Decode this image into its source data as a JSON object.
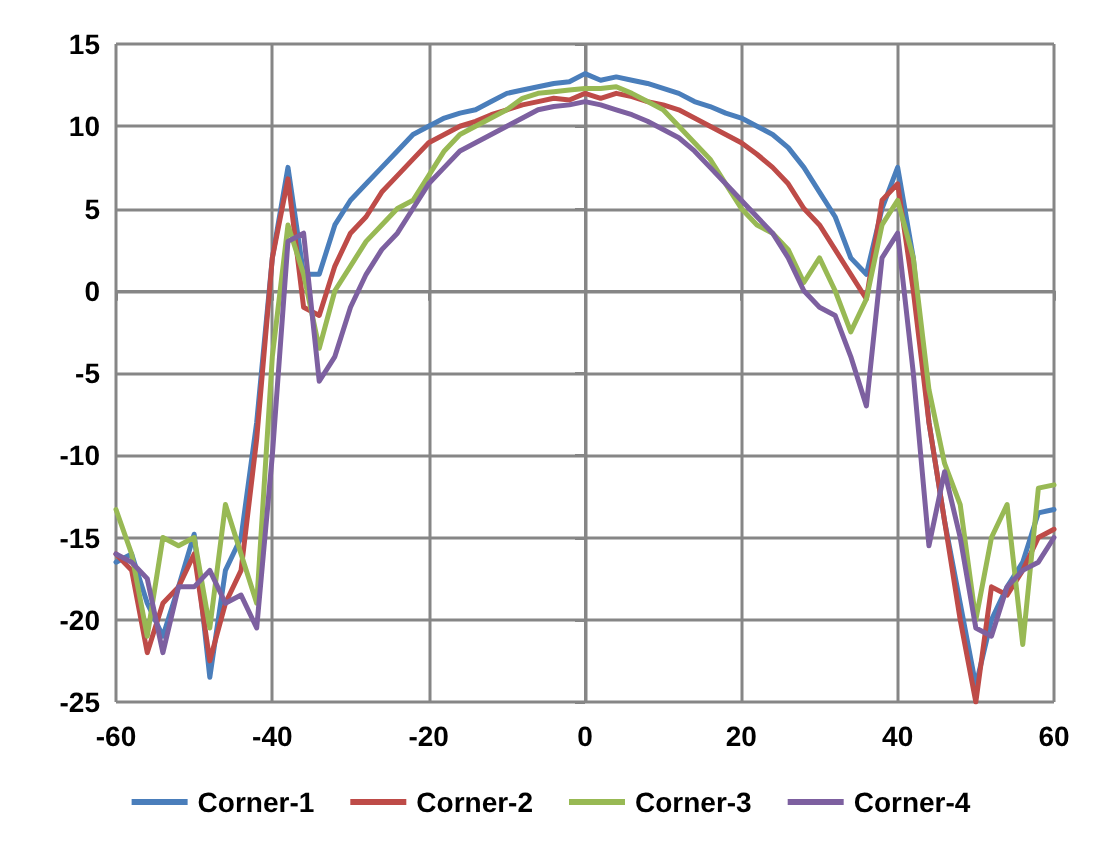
{
  "chart_data": {
    "type": "line",
    "x": [
      -60,
      -58,
      -56,
      -54,
      -52,
      -50,
      -48,
      -46,
      -44,
      -42,
      -40,
      -38,
      -36,
      -34,
      -32,
      -30,
      -28,
      -26,
      -24,
      -22,
      -20,
      -18,
      -16,
      -14,
      -12,
      -10,
      -8,
      -6,
      -4,
      -2,
      0,
      2,
      4,
      6,
      8,
      10,
      12,
      14,
      16,
      18,
      20,
      22,
      24,
      26,
      28,
      30,
      32,
      34,
      36,
      38,
      40,
      42,
      44,
      46,
      48,
      50,
      52,
      54,
      56,
      58,
      60
    ],
    "series": [
      {
        "name": "Corner-1",
        "color": "#4a7ebb",
        "values": [
          -16.5,
          -16,
          -19,
          -21,
          -18,
          -14.8,
          -23.5,
          -17,
          -15,
          -8,
          2,
          7.5,
          1,
          1,
          4,
          5.5,
          6.5,
          7.5,
          8.5,
          9.5,
          10,
          10.5,
          10.8,
          11,
          11.5,
          12,
          12.2,
          12.4,
          12.6,
          12.7,
          13.2,
          12.8,
          13,
          12.8,
          12.6,
          12.3,
          12,
          11.5,
          11.2,
          10.8,
          10.5,
          10,
          9.5,
          8.7,
          7.5,
          6,
          4.5,
          2,
          1,
          5,
          7.5,
          2,
          -8,
          -14,
          -19,
          -24,
          -20,
          -18,
          -16.5,
          -13.5,
          -13.3
        ]
      },
      {
        "name": "Corner-2",
        "color": "#be4b48",
        "values": [
          -16,
          -17,
          -22,
          -19,
          -18,
          -16,
          -22.5,
          -19,
          -17,
          -9,
          2,
          6.8,
          -1,
          -1.5,
          1.5,
          3.5,
          4.5,
          6,
          7,
          8,
          9,
          9.5,
          10,
          10.3,
          10.7,
          11,
          11.3,
          11.5,
          11.7,
          11.6,
          12,
          11.7,
          12,
          11.8,
          11.5,
          11.3,
          11,
          10.5,
          10,
          9.5,
          9,
          8.3,
          7.5,
          6.5,
          5,
          4,
          2.5,
          1,
          -0.5,
          5.5,
          6.5,
          0,
          -8,
          -14,
          -20,
          -25,
          -18,
          -18.5,
          -17,
          -15,
          -14.5
        ]
      },
      {
        "name": "Corner-3",
        "color": "#98b954",
        "values": [
          -13.3,
          -16,
          -21,
          -15,
          -15.5,
          -15,
          -20.5,
          -13,
          -16,
          -19,
          -4,
          4,
          1,
          -3.5,
          0,
          1.5,
          3,
          4,
          5,
          5.5,
          7,
          8.5,
          9.5,
          10,
          10.5,
          11,
          11.7,
          12,
          12.1,
          12.2,
          12.3,
          12.3,
          12.4,
          12,
          11.5,
          11,
          10,
          9,
          8,
          6.5,
          5,
          4,
          3.5,
          2.5,
          0.5,
          2,
          0,
          -2.5,
          -0.5,
          4,
          5.5,
          2,
          -6,
          -10.5,
          -13,
          -20,
          -15,
          -13,
          -21.5,
          -12,
          -11.8
        ]
      },
      {
        "name": "Corner-4",
        "color": "#7d60a0",
        "values": [
          -16,
          -16.5,
          -17.5,
          -22,
          -18,
          -18,
          -17,
          -19,
          -18.5,
          -20.5,
          -10,
          3,
          3.5,
          -5.5,
          -4,
          -1,
          1,
          2.5,
          3.5,
          5,
          6.5,
          7.5,
          8.5,
          9,
          9.5,
          10,
          10.5,
          11,
          11.2,
          11.3,
          11.5,
          11.3,
          11,
          10.7,
          10.3,
          9.8,
          9.3,
          8.5,
          7.5,
          6.5,
          5.5,
          4.5,
          3.5,
          2,
          0,
          -1,
          -1.5,
          -4,
          -7,
          2,
          3.5,
          -5,
          -15.5,
          -11,
          -15,
          -20.5,
          -21,
          -18,
          -17,
          -16.5,
          -15
        ]
      }
    ],
    "xlim": [
      -60,
      60
    ],
    "xticks": [
      -60,
      -40,
      -20,
      0,
      20,
      40,
      60
    ],
    "ylim": [
      -25,
      15
    ],
    "yticks": [
      -25,
      -20,
      -15,
      -10,
      -5,
      0,
      5,
      10,
      15
    ],
    "grid": true,
    "legend": "bottom",
    "marker": "none",
    "line_style": "solid"
  }
}
